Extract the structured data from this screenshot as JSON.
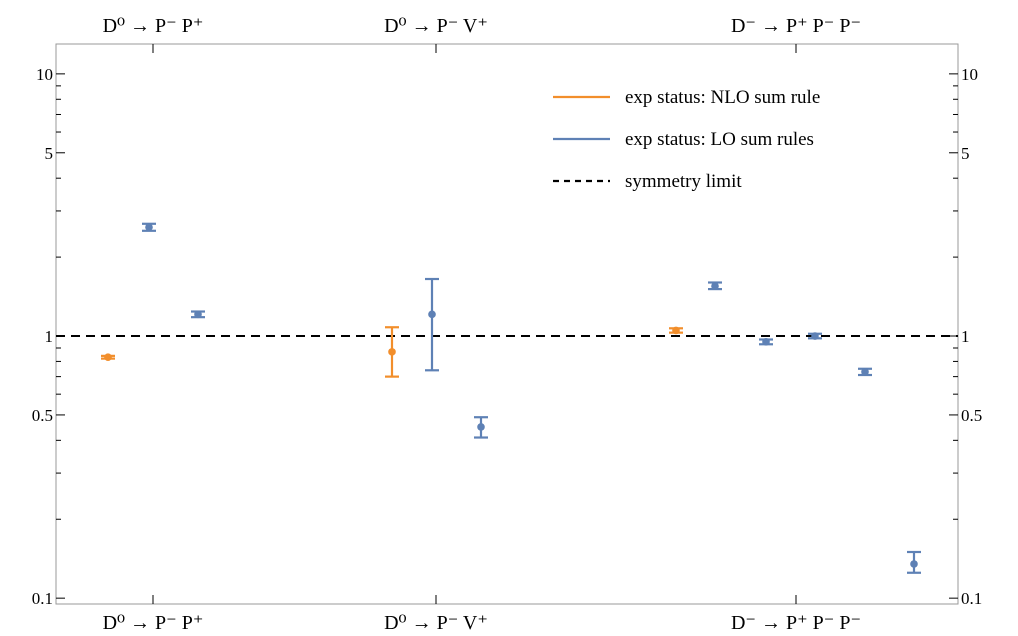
{
  "chart_data": {
    "type": "scatter",
    "y_scale": "log",
    "ylim": [
      0.095,
      13
    ],
    "y_ticks_major": [
      0.1,
      0.5,
      1,
      5,
      10
    ],
    "y_tick_labels": [
      "0.1",
      "0.5",
      "1",
      "5",
      "10"
    ],
    "y_ticks_minor": [
      0.2,
      0.3,
      0.4,
      0.6,
      0.7,
      0.8,
      0.9,
      2,
      3,
      4,
      6,
      7,
      8,
      9
    ],
    "groups": [
      {
        "label": "D⁰ → P⁻ P⁺",
        "top_label": "D⁰ → P⁻ P⁺"
      },
      {
        "label": "D⁰ → P⁻ V⁺",
        "top_label": "D⁰ → P⁻ V⁺"
      },
      {
        "label": "D⁻ → P⁺ P⁻ P⁻",
        "top_label": "D⁻ → P⁺ P⁻ P⁻"
      }
    ],
    "series": [
      {
        "name": "exp status: NLO sum rule",
        "color": "#F28E2B",
        "points": [
          {
            "group": 0,
            "slot": 0,
            "y": 0.83,
            "low": 0.82,
            "high": 0.84
          },
          {
            "group": 1,
            "slot": 0,
            "y": 0.87,
            "low": 0.7,
            "high": 1.08
          },
          {
            "group": 2,
            "slot": 0,
            "y": 1.05,
            "low": 1.03,
            "high": 1.07
          }
        ]
      },
      {
        "name": "exp status: LO sum rules",
        "color": "#5E81B5",
        "points": [
          {
            "group": 0,
            "slot": 1,
            "y": 2.6,
            "low": 2.52,
            "high": 2.68
          },
          {
            "group": 0,
            "slot": 2,
            "y": 1.21,
            "low": 1.18,
            "high": 1.24
          },
          {
            "group": 1,
            "slot": 1,
            "y": 1.21,
            "low": 0.74,
            "high": 1.65
          },
          {
            "group": 1,
            "slot": 2,
            "y": 0.45,
            "low": 0.41,
            "high": 0.49
          },
          {
            "group": 2,
            "slot": 1,
            "y": 1.55,
            "low": 1.51,
            "high": 1.6
          },
          {
            "group": 2,
            "slot": 2,
            "y": 0.95,
            "low": 0.93,
            "high": 0.97
          },
          {
            "group": 2,
            "slot": 3,
            "y": 1.0,
            "low": 0.98,
            "high": 1.02
          },
          {
            "group": 2,
            "slot": 4,
            "y": 0.73,
            "low": 0.71,
            "high": 0.75
          },
          {
            "group": 2,
            "slot": 5,
            "y": 0.135,
            "low": 0.125,
            "high": 0.15
          }
        ]
      }
    ],
    "reference_line": {
      "name": "symmetry limit",
      "y": 1,
      "style": "dashed",
      "color": "#000000"
    },
    "legend": {
      "position": "top-right",
      "entries": [
        {
          "label": "exp status: NLO sum rule",
          "color": "#F28E2B",
          "style": "solid"
        },
        {
          "label": "exp status: LO sum rules",
          "color": "#5E81B5",
          "style": "solid"
        },
        {
          "label": "symmetry limit",
          "color": "#000000",
          "style": "dashed"
        }
      ]
    },
    "grid": false,
    "title": "",
    "xlabel": "",
    "ylabel": ""
  }
}
